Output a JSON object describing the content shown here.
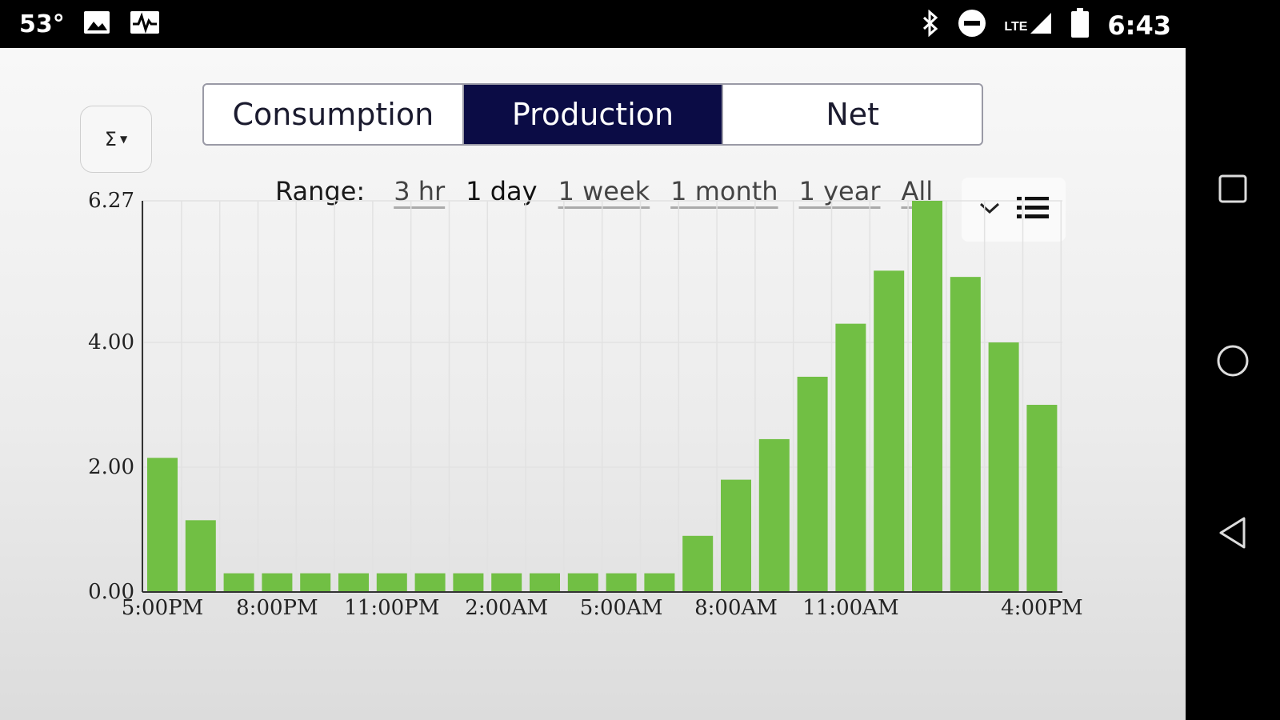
{
  "status_bar": {
    "temperature": "53°",
    "network": "LTE",
    "time": "6:43",
    "icons": [
      "image-icon",
      "activity-icon",
      "bluetooth-icon",
      "do-not-disturb-icon",
      "signal-icon",
      "battery-icon"
    ]
  },
  "toolbar": {
    "sigma_label": "Σ"
  },
  "tabs": [
    {
      "label": "Consumption",
      "active": false
    },
    {
      "label": "Production",
      "active": true
    },
    {
      "label": "Net",
      "active": false
    }
  ],
  "range": {
    "label": "Range:",
    "options": [
      {
        "label": "3 hr",
        "selected": false
      },
      {
        "label": "1 day",
        "selected": true
      },
      {
        "label": "1 week",
        "selected": false
      },
      {
        "label": "1 month",
        "selected": false
      },
      {
        "label": "1 year",
        "selected": false
      },
      {
        "label": "All",
        "selected": false
      }
    ]
  },
  "colors": {
    "bar": "#71bf44",
    "active_tab": "#0b0c45"
  },
  "chart_data": {
    "type": "bar",
    "y_ticks": [
      "0.00",
      "2.00",
      "4.00",
      "6.27"
    ],
    "ylim": [
      0,
      6.27
    ],
    "x_tick_labels": [
      "5:00PM",
      "8:00PM",
      "11:00PM",
      "2:00AM",
      "5:00AM",
      "8:00AM",
      "11:00AM",
      "4:00PM"
    ],
    "x_tick_bar_index": [
      0,
      3,
      6,
      9,
      12,
      15,
      18,
      23
    ],
    "grid": true,
    "values": [
      2.15,
      1.15,
      0.3,
      0.3,
      0.3,
      0.3,
      0.3,
      0.3,
      0.3,
      0.3,
      0.3,
      0.3,
      0.3,
      0.3,
      0.9,
      1.8,
      2.45,
      3.45,
      4.3,
      5.15,
      6.27,
      5.05,
      4.0,
      3.0
    ]
  }
}
